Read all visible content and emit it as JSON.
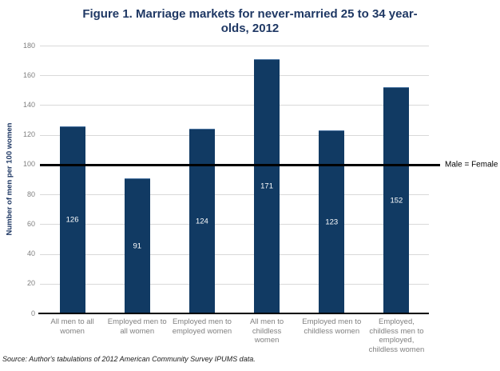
{
  "display": {
    "title": "Figure 1. Marriage markets for never-married 25 to 34 year-\nolds, 2012",
    "categories": [
      "All men to all\nwomen",
      "Employed men to\nall women",
      "Employed men to\nemployed women",
      "All men to childless\nwomen",
      "Employed men to\nchildless women",
      "Employed,\nchildless men to\nemployed,\nchildless women"
    ]
  },
  "chart_data": {
    "type": "bar",
    "title": "Figure 1. Marriage markets for never-married 25 to 34 year-olds, 2012",
    "categories": [
      "All men to all women",
      "Employed men to all women",
      "Employed men to employed women",
      "All men to childless women",
      "Employed men to childless women",
      "Employed, childless men to employed, childless women"
    ],
    "values": [
      126,
      91,
      124,
      171,
      123,
      152
    ],
    "xlabel": "",
    "ylabel": "Number of men per 100 women",
    "ylim": [
      0,
      180
    ],
    "ytick_step": 20,
    "grid": true,
    "legend": "none",
    "bar_color": "#113a63",
    "title_color": "#1f3864",
    "reference_line": {
      "value": 100,
      "label": "Male = Female"
    },
    "source": "Source: Author's tabulations of 2012 American Community Survey IPUMS data."
  }
}
